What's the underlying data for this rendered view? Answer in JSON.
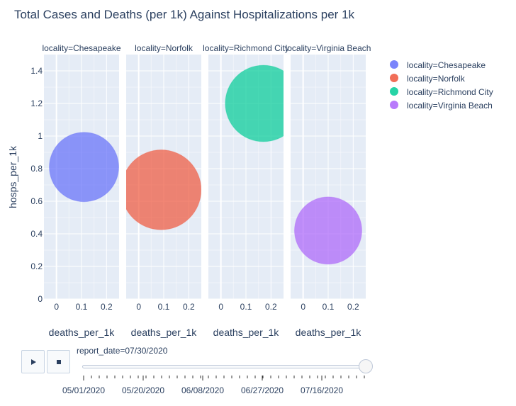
{
  "chart_data": {
    "type": "scatter",
    "title": "Total Cases and Deaths (per 1k) Against Hospitalizations per 1k",
    "ylabel": "hosps_per_1k",
    "xlabel": "deaths_per_1k",
    "ylim": [
      0,
      1.5
    ],
    "xlim": [
      -0.05,
      0.25
    ],
    "grid": true,
    "legend_position": "right",
    "y_ticks": [
      "0",
      "0.2",
      "0.4",
      "0.6",
      "0.8",
      "1",
      "1.2",
      "1.4"
    ],
    "x_ticks": [
      "0",
      "0.1",
      "0.2"
    ],
    "facets": [
      {
        "title": "locality=Chesapeake",
        "x": 0.11,
        "y": 0.81,
        "size": 1.0,
        "color": "#636efa"
      },
      {
        "title": "locality=Norfolk",
        "x": 0.09,
        "y": 0.67,
        "size": 1.15,
        "color": "#ef553b"
      },
      {
        "title": "locality=Richmond City",
        "x": 0.17,
        "y": 1.2,
        "size": 1.1,
        "color": "#00cc96"
      },
      {
        "title": "locality=Virginia Beach",
        "x": 0.1,
        "y": 0.42,
        "size": 0.97,
        "color": "#ab63fa"
      }
    ],
    "legend": [
      {
        "label": "locality=Chesapeake",
        "color": "#636efa"
      },
      {
        "label": "locality=Norfolk",
        "color": "#ef553b"
      },
      {
        "label": "locality=Richmond City",
        "color": "#00cc96"
      },
      {
        "label": "locality=Virginia Beach",
        "color": "#ab63fa"
      }
    ]
  },
  "animation": {
    "current_label": "report_date=07/30/2020",
    "play_icon": "play-icon",
    "stop_icon": "stop-icon",
    "slider_ticks": [
      "05/01/2020",
      "05/20/2020",
      "06/08/2020",
      "06/27/2020",
      "07/16/2020"
    ],
    "slider_progress": 1.0
  },
  "colors": {
    "plot_bg": "#e5ecf6",
    "grid": "#ffffff",
    "text": "#2a3f5f"
  }
}
